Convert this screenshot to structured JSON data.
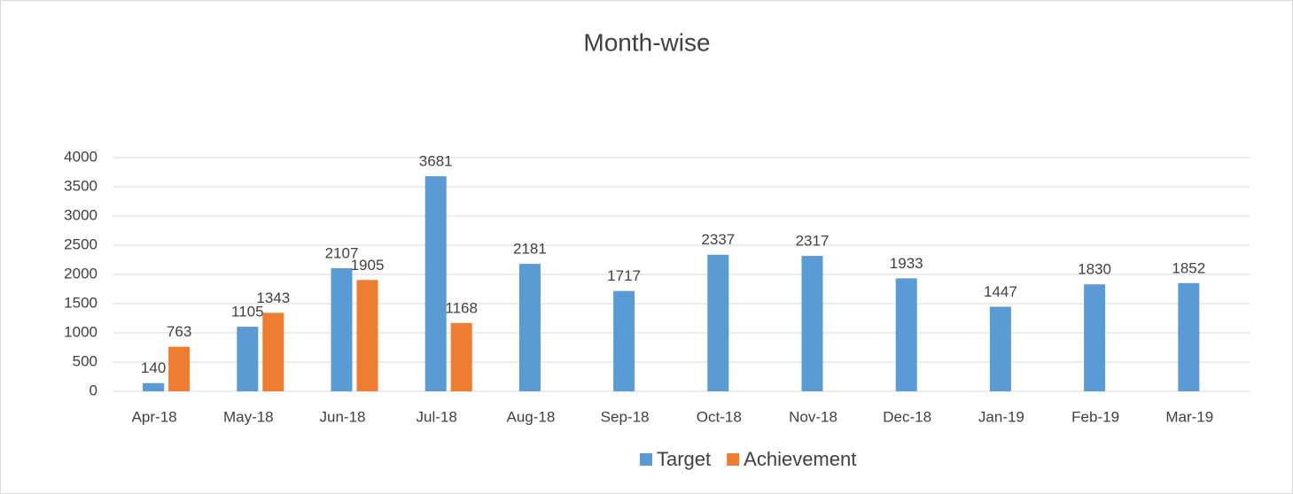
{
  "chart_data": {
    "type": "bar",
    "title": "Month-wise",
    "categories": [
      "Apr-18",
      "May-18",
      "Jun-18",
      "Jul-18",
      "Aug-18",
      "Sep-18",
      "Oct-18",
      "Nov-18",
      "Dec-18",
      "Jan-19",
      "Feb-19",
      "Mar-19"
    ],
    "series": [
      {
        "name": "Target",
        "color": "#5b9bd5",
        "values": [
          140,
          1105,
          2107,
          3681,
          2181,
          1717,
          2337,
          2317,
          1933,
          1447,
          1830,
          1852
        ]
      },
      {
        "name": "Achievement",
        "color": "#ed7d31",
        "values": [
          763,
          1343,
          1905,
          1168,
          null,
          null,
          null,
          null,
          null,
          null,
          null,
          null
        ]
      }
    ],
    "ylim": [
      0,
      4000
    ],
    "yticks": [
      0,
      500,
      1000,
      1500,
      2000,
      2500,
      3000,
      3500,
      4000
    ],
    "grid": true,
    "legend": "bottom"
  }
}
